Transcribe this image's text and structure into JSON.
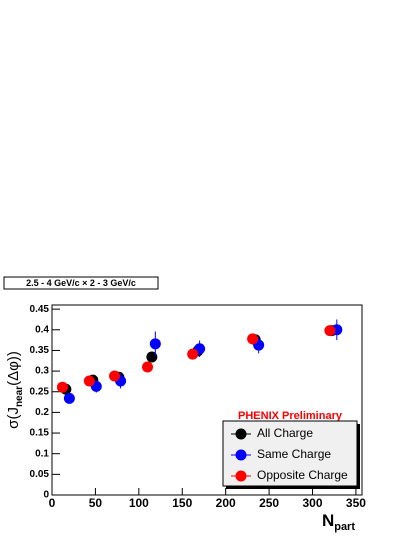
{
  "chart_data": {
    "type": "scatter",
    "annotation": "2.5 - 4 GeV/c × 2 - 3 GeV/c",
    "preliminary": "PHENIX Preliminary",
    "xlabel": {
      "main": "N",
      "sub": "part"
    },
    "ylabel": {
      "main": "σ(J",
      "sub": "near",
      "rest": "(Δφ))"
    },
    "xlim": [
      0,
      357
    ],
    "ylim": [
      0,
      0.46
    ],
    "xticks": [
      0,
      50,
      100,
      150,
      200,
      250,
      300,
      350
    ],
    "yticks": [
      0,
      0.05,
      0.1,
      0.15,
      0.2,
      0.25,
      0.3,
      0.35,
      0.4,
      0.45
    ],
    "series": [
      {
        "name": "All Charge",
        "color": "#000000",
        "x": [
          16,
          47,
          77,
          115,
          168,
          234,
          322
        ],
        "values": [
          0.256,
          0.278,
          0.285,
          0.334,
          0.349,
          0.376,
          0.398
        ],
        "errors": [
          0.01,
          0.012,
          0.012,
          0.012,
          0.012,
          0.01,
          0.012
        ]
      },
      {
        "name": "Same Charge",
        "color": "#0000ff",
        "x": [
          20,
          51,
          79,
          119,
          170,
          238,
          328
        ],
        "values": [
          0.234,
          0.263,
          0.276,
          0.366,
          0.354,
          0.363,
          0.4
        ],
        "errors": [
          0.01,
          0.015,
          0.018,
          0.03,
          0.02,
          0.02,
          0.025
        ]
      },
      {
        "name": "Opposite Charge",
        "color": "#ff0000",
        "x": [
          12,
          43,
          72,
          110,
          162,
          231,
          320
        ],
        "values": [
          0.261,
          0.276,
          0.288,
          0.31,
          0.341,
          0.378,
          0.398
        ],
        "errors": [
          0.008,
          0.01,
          0.01,
          0.01,
          0.01,
          0.01,
          0.012
        ]
      }
    ]
  }
}
